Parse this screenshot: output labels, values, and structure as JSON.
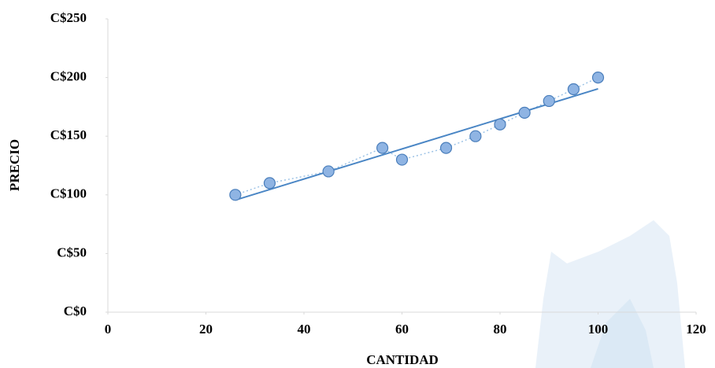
{
  "chart_data": {
    "type": "scatter",
    "x_label": "CANTIDAD",
    "y_label": "PRECIO",
    "x": [
      26,
      33,
      45,
      56,
      60,
      69,
      75,
      80,
      85,
      90,
      95,
      100
    ],
    "values": [
      100,
      110,
      120,
      140,
      130,
      140,
      150,
      160,
      170,
      180,
      190,
      200
    ],
    "color": "#8fb4e3",
    "line_color": "#9dc3e6",
    "trendline": "linear",
    "trendline_color": "#4a86c5",
    "xlim": [
      0,
      120
    ],
    "xticks": [
      0,
      20,
      40,
      60,
      80,
      100,
      120
    ],
    "ylim": [
      0,
      250
    ],
    "yticks": [
      {
        "value": 0,
        "label": "C$0"
      },
      {
        "value": 50,
        "label": "C$50"
      },
      {
        "value": 100,
        "label": "C$100"
      },
      {
        "value": 150,
        "label": "C$150"
      },
      {
        "value": 200,
        "label": "C$200"
      },
      {
        "value": 250,
        "label": "C$250"
      }
    ],
    "grid": false
  }
}
